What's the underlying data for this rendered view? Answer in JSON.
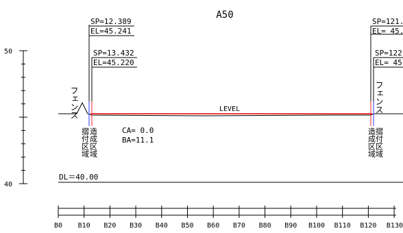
{
  "title": "A50",
  "vertical_scale": {
    "label_top": "50",
    "label_bottom": "40"
  },
  "datum": {
    "label": "DL＝40.00"
  },
  "level_label": "LEVEL",
  "left_callouts": [
    {
      "sp": "SP=12.389",
      "el": "EL=45.241"
    },
    {
      "sp": "SP=13.432",
      "el": "EL=45.220"
    }
  ],
  "right_callouts": [
    {
      "sp": "SP=121.",
      "el": "EL= 45."
    },
    {
      "sp": "SP=122",
      "el": "EL= 45"
    }
  ],
  "fence_left": "フェンス",
  "fence_right": "フェンス",
  "left_zone_blue": "摺付区域",
  "left_zone_red": "造成区域",
  "right_zone_red": "造成区域",
  "right_zone_blue": "摺付区域",
  "params": {
    "ca": "CA= 0.0",
    "ba": "BA=11.1"
  },
  "stations": [
    "B0",
    "B10",
    "B20",
    "B30",
    "B40",
    "B50",
    "B60",
    "B70",
    "B80",
    "B90",
    "B100",
    "B110",
    "B120",
    "B130"
  ],
  "colors": {
    "design_line": "#e00000",
    "ground_line": "#000000",
    "red_marker": "#ff2020",
    "blue_marker": "#3030ff"
  }
}
